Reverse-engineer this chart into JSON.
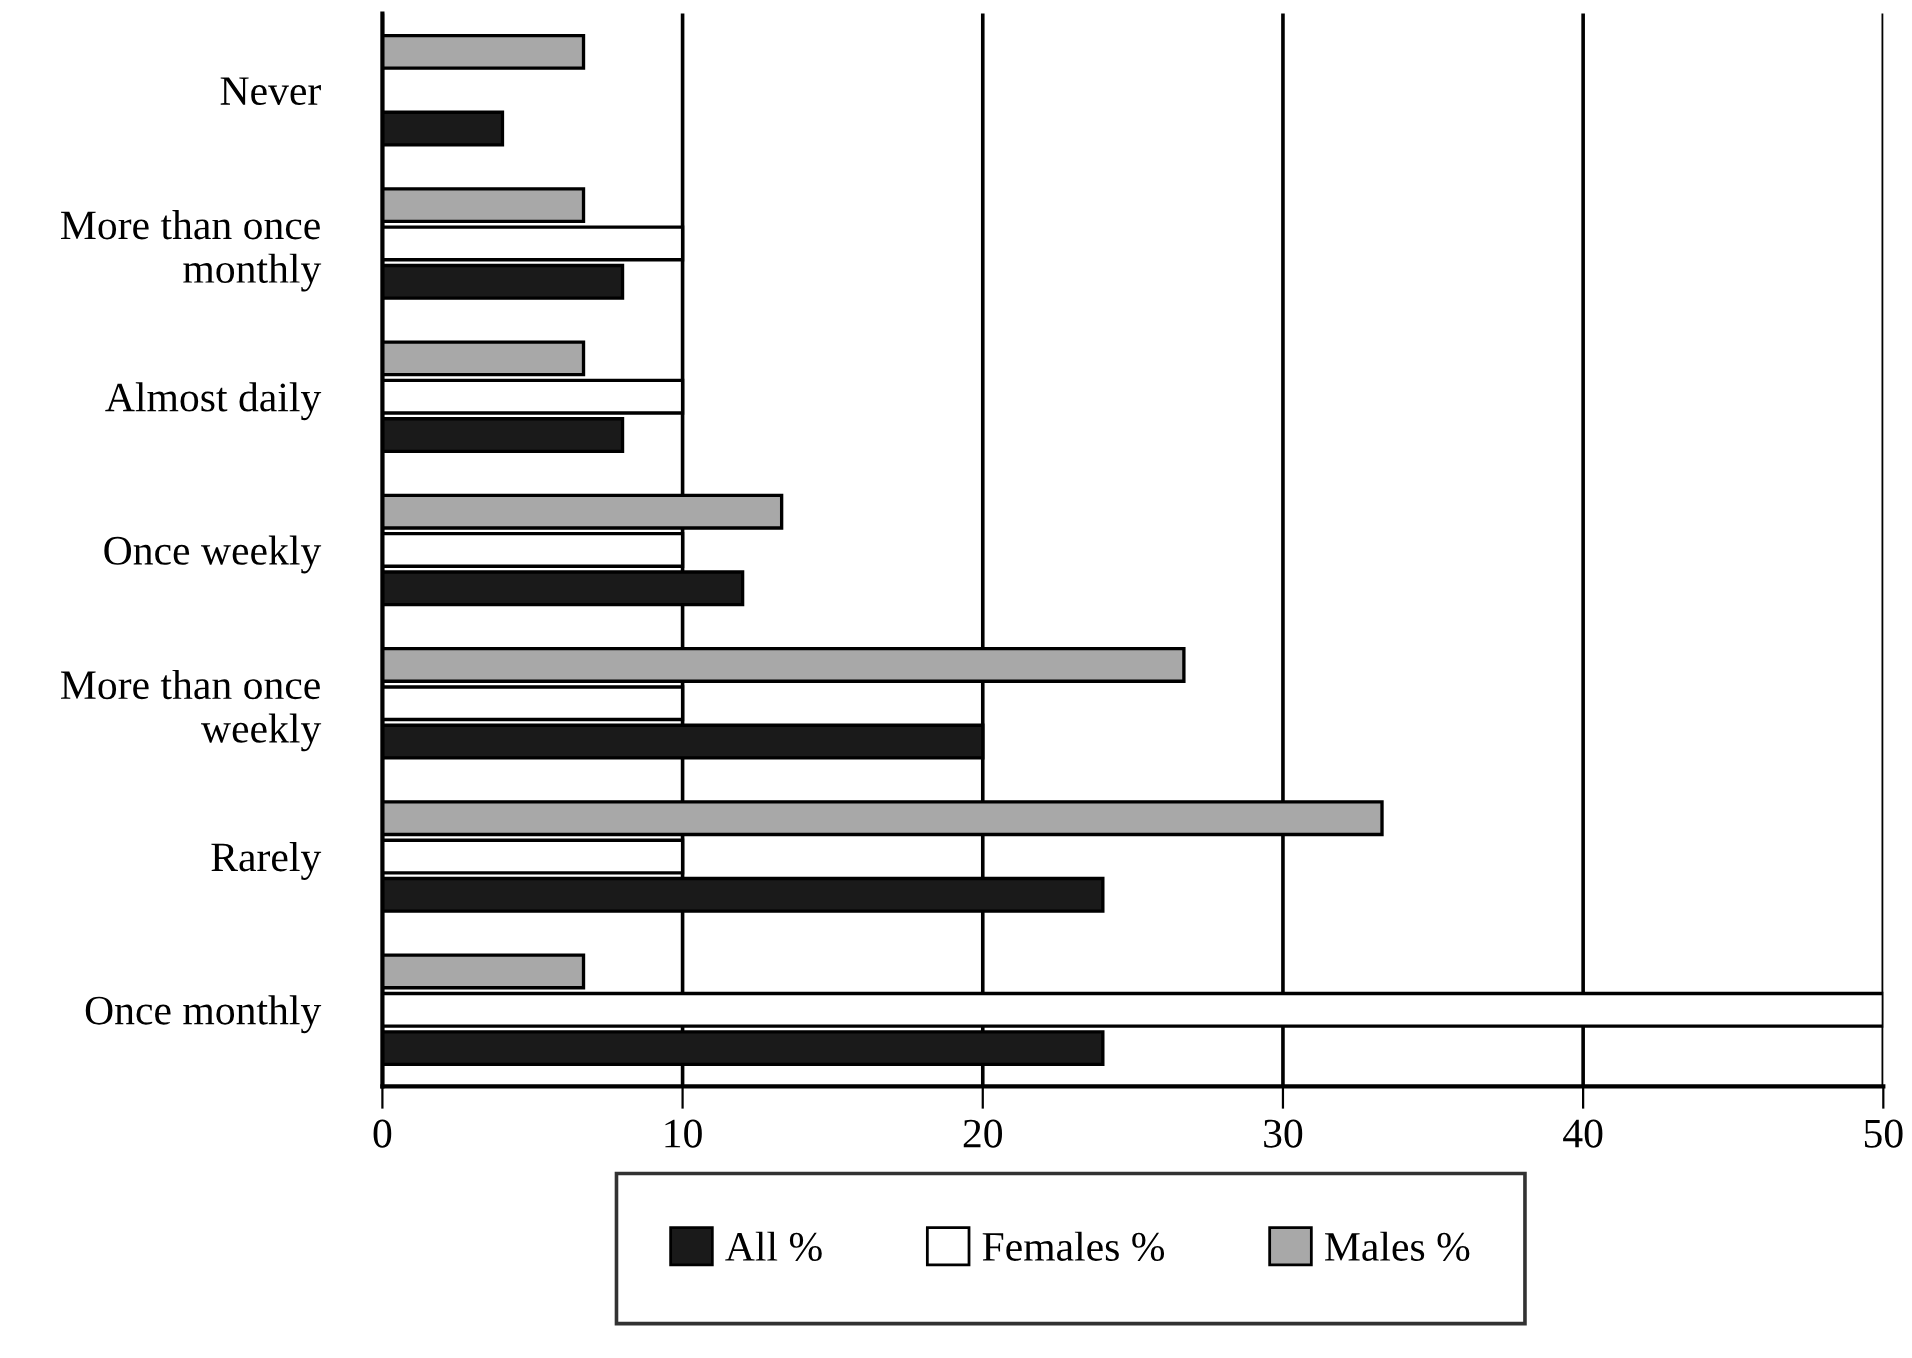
{
  "chart_data": {
    "type": "bar",
    "orientation": "horizontal",
    "categories": [
      "Never",
      "More than once monthly",
      "Almost daily",
      "Once weekly",
      "More than once weekly",
      "Rarely",
      "Once monthly"
    ],
    "series": [
      {
        "name": "All %",
        "color": "#1a1a1a",
        "values": [
          4,
          8,
          8,
          12,
          20,
          24,
          24
        ]
      },
      {
        "name": "Females %",
        "color": "#ffffff",
        "values": [
          null,
          10,
          10,
          10,
          10,
          10,
          50
        ]
      },
      {
        "name": "Males %",
        "color": "#a8a8a8",
        "values": [
          6.7,
          6.7,
          6.7,
          13.3,
          26.7,
          33.3,
          6.7
        ]
      }
    ],
    "xlim": [
      0,
      50
    ],
    "xticks": [
      0,
      10,
      20,
      30,
      40,
      50
    ],
    "grid": "x",
    "legend": "bottom"
  }
}
